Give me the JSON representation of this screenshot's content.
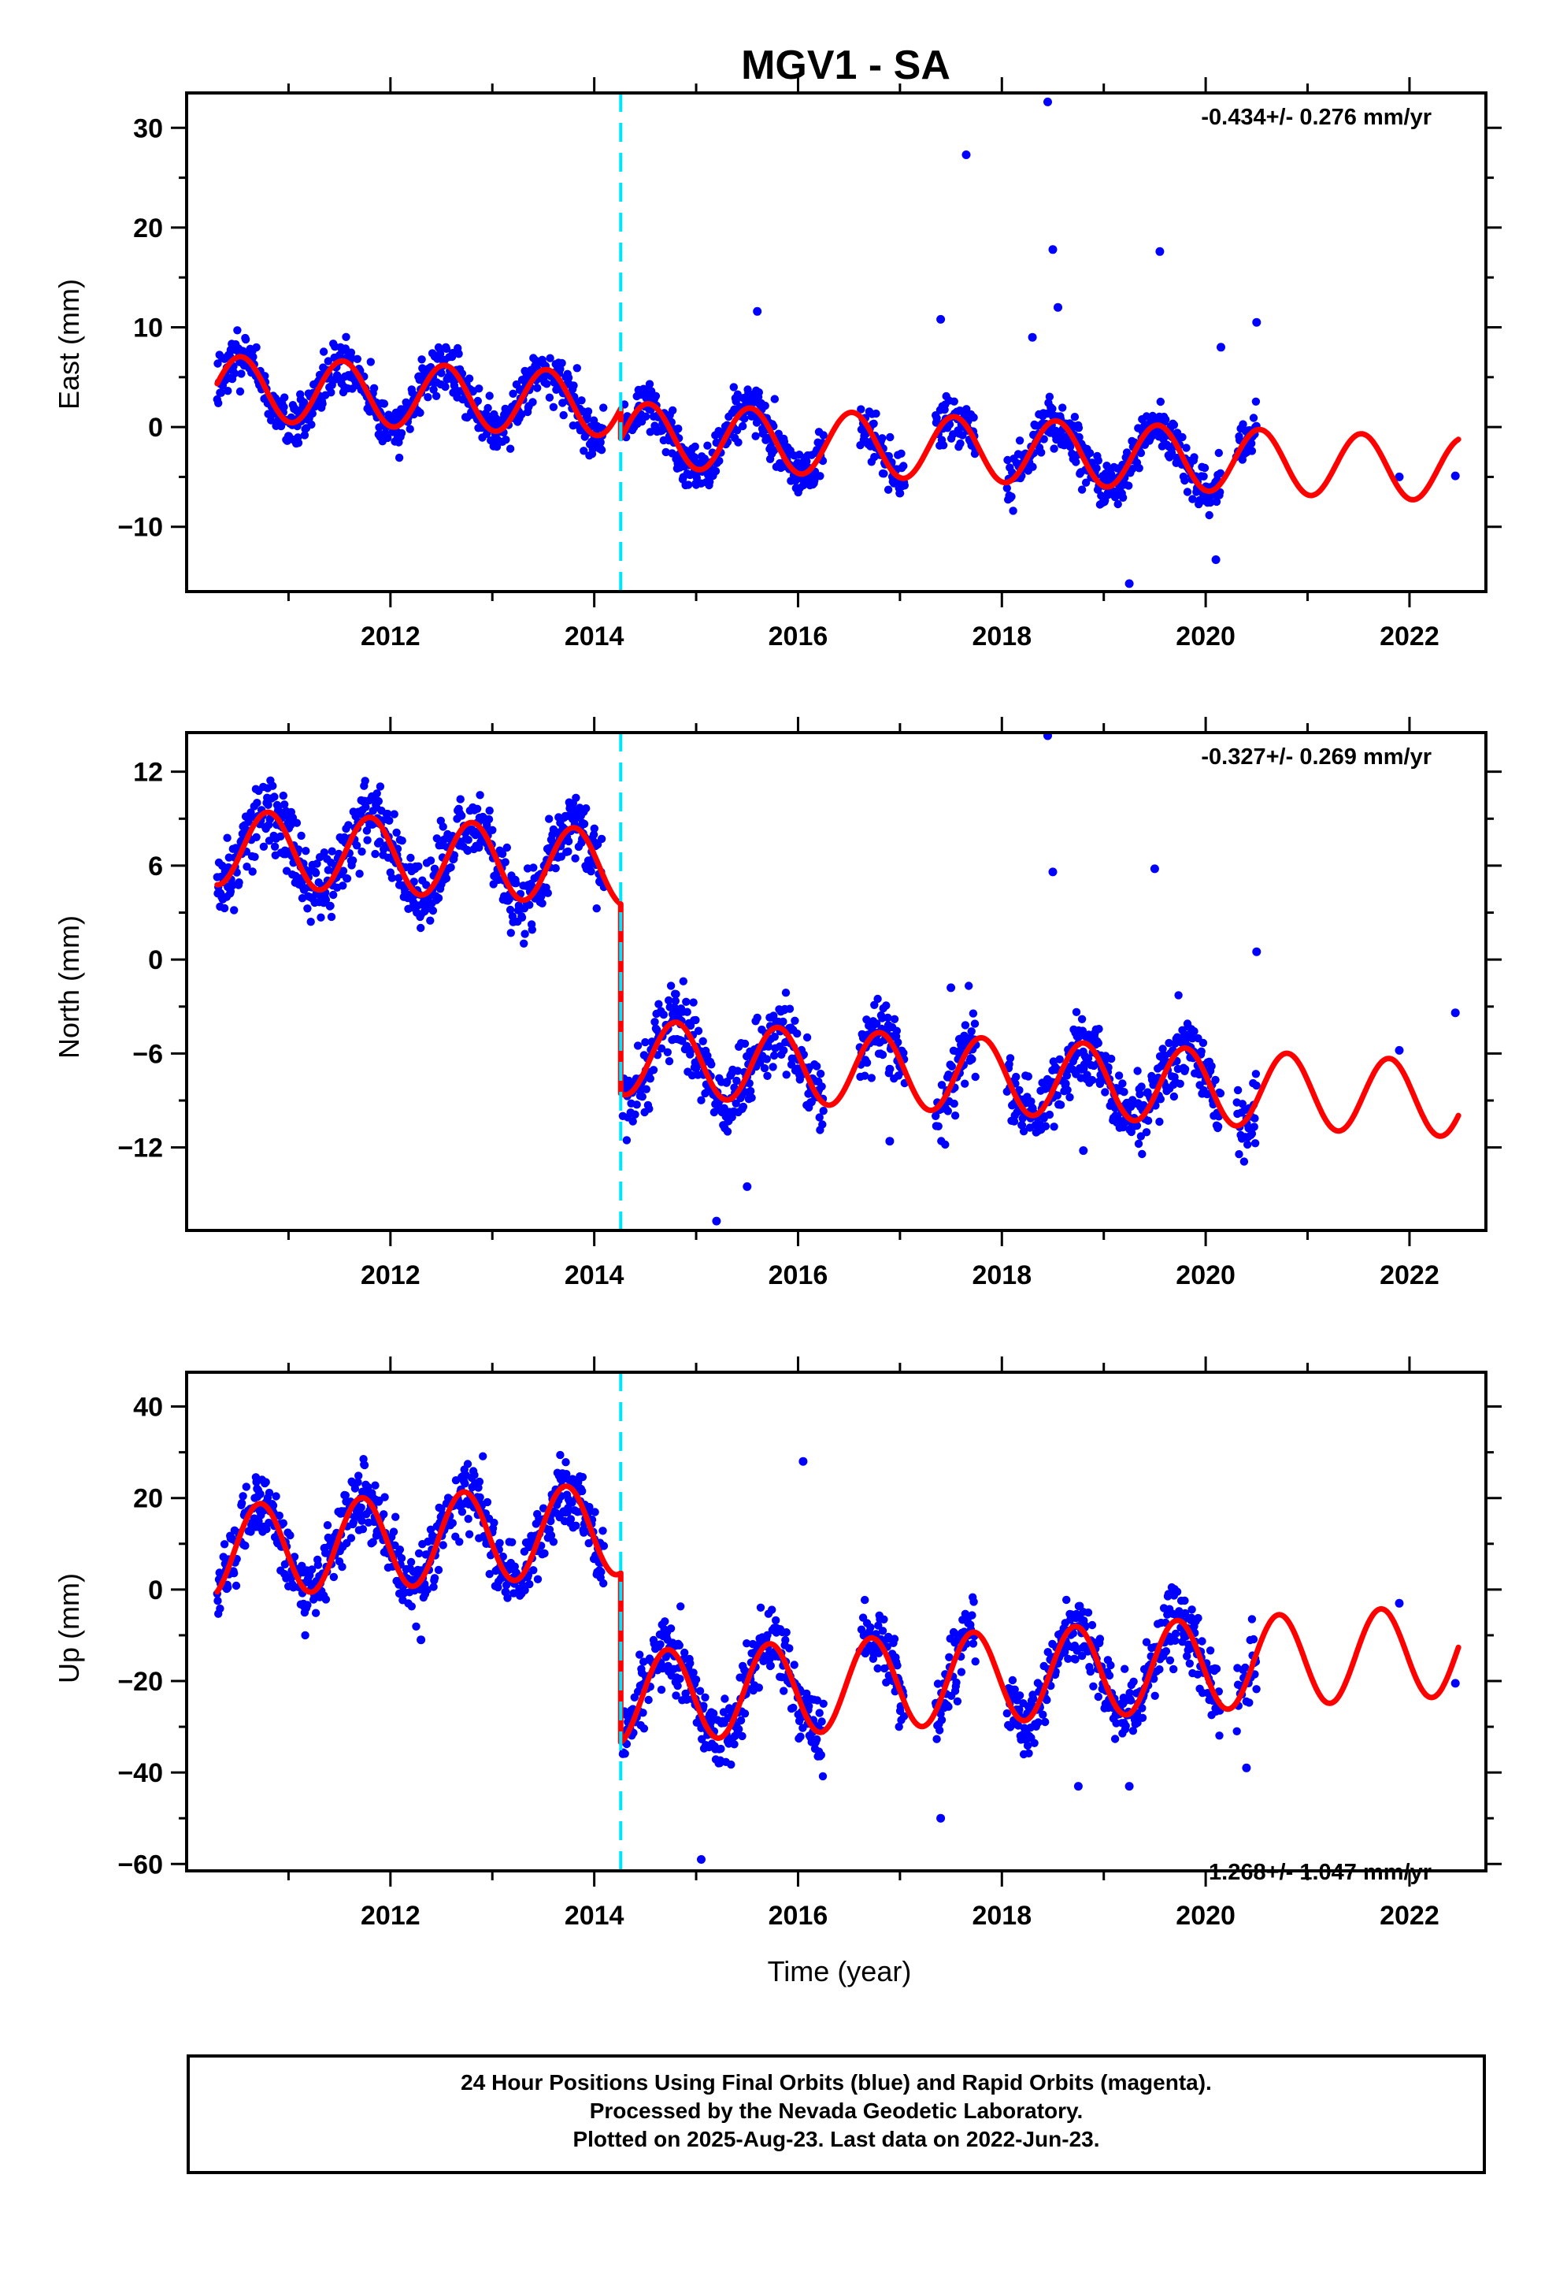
{
  "title": "MGV1 - SA",
  "xlabel": "Time (year)",
  "footer": {
    "line1": "24 Hour Positions Using Final Orbits (blue) and Rapid Orbits (magenta).",
    "line2": "Processed by the Nevada Geodetic Laboratory.",
    "line3": "Plotted on 2025-Aug-23. Last data on 2022-Jun-23."
  },
  "colors": {
    "data": "#0000ff",
    "fit": "#ff0000",
    "equipment_change": "#00e5ff"
  },
  "chart_data": [
    {
      "type": "scatter",
      "component": "east",
      "ylabel": "East (mm)",
      "rate": "-0.434+/- 0.276 mm/yr",
      "rate_position": "top-right",
      "xlim": [
        2010.0,
        2022.75
      ],
      "ylim": [
        -16.5,
        33.5
      ],
      "yticks": [
        -10,
        0,
        10,
        20,
        30
      ],
      "xticks": [
        2012,
        2014,
        2016,
        2018,
        2020,
        2022
      ],
      "equipment_change": 2014.26,
      "fit": {
        "pre": {
          "mean": 1.5,
          "trend": -0.43
        },
        "post": {
          "mean": -1.5,
          "trend": -0.43
        },
        "annual_amp": 3.2,
        "phase": 0.28,
        "offset_at_break": -3.0
      },
      "data_segments": [
        [
          2010.3,
          2014.1
        ],
        [
          2014.28,
          2016.25
        ],
        [
          2016.6,
          2017.05
        ],
        [
          2017.35,
          2017.75
        ],
        [
          2018.05,
          2020.15
        ],
        [
          2020.3,
          2020.5
        ]
      ],
      "noise_sd": 1.8,
      "outliers": [
        [
          2017.65,
          27.3
        ],
        [
          2018.45,
          32.6
        ],
        [
          2018.5,
          17.8
        ],
        [
          2019.55,
          17.6
        ],
        [
          2015.6,
          11.6
        ],
        [
          2018.55,
          12.0
        ],
        [
          2019.25,
          -15.7
        ],
        [
          2020.1,
          -13.3
        ],
        [
          2020.15,
          8.0
        ],
        [
          2020.5,
          10.5
        ],
        [
          2022.45,
          -4.9
        ],
        [
          2021.9,
          -5.0
        ],
        [
          2017.4,
          10.8
        ],
        [
          2018.3,
          9.0
        ]
      ]
    },
    {
      "type": "scatter",
      "component": "north",
      "ylabel": "North (mm)",
      "rate": "-0.327+/- 0.269 mm/yr",
      "rate_position": "top-right",
      "xlim": [
        2010.0,
        2022.75
      ],
      "ylim": [
        -17.3,
        14.5
      ],
      "yticks": [
        -12,
        -6,
        0,
        6,
        12
      ],
      "xticks": [
        2012,
        2014,
        2016,
        2018,
        2020,
        2022
      ],
      "equipment_change": 2014.26,
      "fit": {
        "pre": {
          "mean": 5.3,
          "trend": -0.33
        },
        "post": {
          "mean": -6.8,
          "trend": -0.33
        },
        "annual_amp": 2.4,
        "phase": 0.55
      },
      "data_segments": [
        [
          2010.3,
          2014.1
        ],
        [
          2014.28,
          2016.25
        ],
        [
          2016.6,
          2017.05
        ],
        [
          2017.35,
          2017.75
        ],
        [
          2018.05,
          2020.15
        ],
        [
          2020.3,
          2020.5
        ]
      ],
      "noise_sd": 1.6,
      "outliers": [
        [
          2018.45,
          14.3
        ],
        [
          2018.5,
          5.6
        ],
        [
          2019.5,
          5.8
        ],
        [
          2015.2,
          -16.7
        ],
        [
          2015.5,
          -14.5
        ],
        [
          2022.45,
          -3.4
        ],
        [
          2021.9,
          -5.8
        ],
        [
          2020.5,
          0.5
        ],
        [
          2018.8,
          -12.2
        ],
        [
          2017.5,
          -1.8
        ],
        [
          2016.9,
          -11.6
        ]
      ]
    },
    {
      "type": "scatter",
      "component": "up",
      "ylabel": "Up (mm)",
      "rate": "1.268+/- 1.047 mm/yr",
      "rate_position": "bottom-right",
      "xlim": [
        2010.0,
        2022.75
      ],
      "ylim": [
        -61.5,
        47.5
      ],
      "yticks": [
        -60,
        -40,
        -20,
        0,
        20,
        40
      ],
      "xticks": [
        2012,
        2014,
        2016,
        2018,
        2020,
        2022
      ],
      "equipment_change": 2014.26,
      "fit": {
        "pre": {
          "mean": 15.5,
          "trend": 1.27
        },
        "post": {
          "mean": -21.5,
          "trend": 1.27
        },
        "annual_amp": 10.0,
        "phase": 0.47
      },
      "data_segments": [
        [
          2010.3,
          2014.1
        ],
        [
          2014.28,
          2016.25
        ],
        [
          2016.6,
          2017.05
        ],
        [
          2017.35,
          2017.75
        ],
        [
          2018.05,
          2020.15
        ],
        [
          2020.3,
          2020.5
        ]
      ],
      "noise_sd": 5.5,
      "outliers": [
        [
          2016.05,
          28.0
        ],
        [
          2017.4,
          -50.0
        ],
        [
          2015.05,
          -59.0
        ],
        [
          2020.4,
          -39.0
        ],
        [
          2022.45,
          -20.5
        ],
        [
          2021.9,
          -3.0
        ],
        [
          2012.3,
          -11.0
        ],
        [
          2018.75,
          -43.0
        ],
        [
          2019.25,
          -43.0
        ]
      ]
    }
  ]
}
